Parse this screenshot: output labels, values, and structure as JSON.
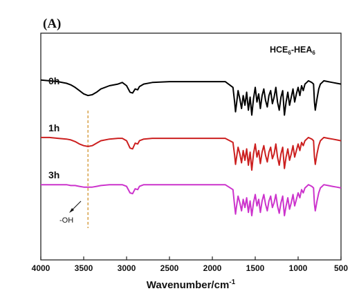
{
  "panel_label": "(A)",
  "sample_label": {
    "base": "HCE",
    "sub1": "6",
    "mid": "-HEA",
    "sub2": "6"
  },
  "annotation_oh": "-OH",
  "chart_data": {
    "type": "line",
    "title": "",
    "xlabel_main": "Wavenumber/cm",
    "xlabel_sup": "-1",
    "ylabel": "",
    "xlim": [
      4000,
      500
    ],
    "x_reversed": true,
    "x_ticks": [
      4000,
      3500,
      3000,
      2500,
      2000,
      1500,
      1000,
      500
    ],
    "y_ticks_shown": false,
    "grid": false,
    "legend": "none",
    "y_units": "relative transmittance (offset)",
    "reference_line": {
      "x": 3450,
      "style": "dashed",
      "color": "#d49a3a"
    },
    "series": [
      {
        "name": "0h",
        "color": "#000000",
        "x": [
          4000,
          3900,
          3800,
          3700,
          3650,
          3600,
          3550,
          3500,
          3450,
          3400,
          3350,
          3300,
          3200,
          3100,
          3050,
          3000,
          2960,
          2930,
          2900,
          2870,
          2850,
          2800,
          2700,
          2500,
          2300,
          2000,
          1850,
          1760,
          1740,
          1730,
          1720,
          1700,
          1680,
          1660,
          1640,
          1620,
          1600,
          1580,
          1560,
          1540,
          1520,
          1500,
          1480,
          1460,
          1440,
          1420,
          1400,
          1380,
          1360,
          1340,
          1320,
          1300,
          1280,
          1260,
          1240,
          1220,
          1200,
          1180,
          1160,
          1140,
          1120,
          1100,
          1080,
          1060,
          1040,
          1020,
          1000,
          980,
          960,
          940,
          920,
          900,
          880,
          860,
          840,
          820,
          810,
          800,
          780,
          760,
          740,
          720,
          700,
          650,
          600,
          550,
          500
        ],
        "y": [
          57,
          56,
          55,
          53,
          51,
          48,
          44,
          40,
          38,
          39,
          42,
          46,
          50,
          52,
          54,
          50,
          42,
          41,
          46,
          45,
          49,
          52,
          54,
          55,
          55,
          55,
          55,
          48,
          30,
          18,
          26,
          44,
          34,
          22,
          38,
          26,
          42,
          20,
          36,
          14,
          34,
          48,
          30,
          40,
          22,
          38,
          46,
          32,
          24,
          38,
          44,
          28,
          36,
          48,
          30,
          20,
          36,
          44,
          14,
          30,
          42,
          26,
          36,
          46,
          30,
          40,
          48,
          38,
          50,
          44,
          52,
          54,
          56,
          55,
          54,
          52,
          30,
          20,
          34,
          46,
          52,
          54,
          56,
          55,
          54,
          53,
          52
        ]
      },
      {
        "name": "1h",
        "color": "#cc1f1f",
        "x": [
          4000,
          3900,
          3800,
          3700,
          3650,
          3600,
          3550,
          3500,
          3450,
          3400,
          3350,
          3300,
          3200,
          3100,
          3050,
          3000,
          2960,
          2930,
          2900,
          2870,
          2850,
          2800,
          2700,
          2500,
          2300,
          2000,
          1850,
          1760,
          1740,
          1730,
          1720,
          1700,
          1680,
          1660,
          1640,
          1620,
          1600,
          1580,
          1560,
          1540,
          1520,
          1500,
          1480,
          1460,
          1440,
          1420,
          1400,
          1380,
          1360,
          1340,
          1320,
          1300,
          1280,
          1260,
          1240,
          1220,
          1200,
          1180,
          1160,
          1140,
          1120,
          1100,
          1080,
          1060,
          1040,
          1020,
          1000,
          980,
          960,
          940,
          920,
          900,
          880,
          860,
          840,
          820,
          810,
          800,
          780,
          760,
          740,
          720,
          700,
          650,
          600,
          550,
          500
        ],
        "y": [
          34,
          34,
          33,
          32,
          31,
          29,
          26,
          24,
          23,
          24,
          27,
          30,
          32,
          33,
          33,
          30,
          21,
          20,
          27,
          26,
          30,
          32,
          33,
          33,
          33,
          33,
          33,
          28,
          12,
          1,
          8,
          22,
          14,
          3,
          18,
          6,
          20,
          0,
          16,
          -6,
          14,
          26,
          10,
          18,
          2,
          16,
          24,
          12,
          4,
          16,
          22,
          8,
          14,
          26,
          10,
          0,
          14,
          22,
          -4,
          10,
          20,
          6,
          14,
          24,
          10,
          18,
          26,
          18,
          28,
          24,
          30,
          32,
          34,
          33,
          32,
          30,
          10,
          1,
          14,
          24,
          30,
          32,
          34,
          33,
          32,
          31,
          30
        ]
      },
      {
        "name": "3h",
        "color": "#cc33cc",
        "x": [
          4000,
          3900,
          3800,
          3700,
          3650,
          3600,
          3550,
          3500,
          3450,
          3400,
          3350,
          3300,
          3200,
          3100,
          3050,
          3000,
          2960,
          2930,
          2900,
          2870,
          2850,
          2800,
          2700,
          2500,
          2300,
          2000,
          1850,
          1760,
          1740,
          1730,
          1720,
          1700,
          1680,
          1660,
          1640,
          1620,
          1600,
          1580,
          1560,
          1540,
          1520,
          1500,
          1480,
          1460,
          1440,
          1420,
          1400,
          1380,
          1360,
          1340,
          1320,
          1300,
          1280,
          1260,
          1240,
          1220,
          1200,
          1180,
          1160,
          1140,
          1120,
          1100,
          1080,
          1060,
          1040,
          1020,
          1000,
          980,
          960,
          940,
          920,
          900,
          880,
          860,
          840,
          820,
          810,
          800,
          780,
          760,
          740,
          720,
          700,
          650,
          600,
          550,
          500
        ],
        "y": [
          10,
          10,
          10,
          10,
          9,
          9,
          8,
          7,
          7,
          7,
          8,
          9,
          10,
          10,
          10,
          8,
          0,
          -1,
          5,
          4,
          8,
          10,
          10,
          10,
          10,
          10,
          10,
          4,
          -16,
          -26,
          -18,
          -4,
          -12,
          -22,
          -8,
          -18,
          -6,
          -24,
          -10,
          -28,
          -12,
          -2,
          -16,
          -8,
          -24,
          -10,
          -2,
          -14,
          -22,
          -10,
          -4,
          -18,
          -12,
          -2,
          -16,
          -25,
          -12,
          -4,
          -28,
          -16,
          -6,
          -20,
          -12,
          -2,
          -16,
          -8,
          0,
          -6,
          4,
          0,
          6,
          8,
          10,
          9,
          8,
          6,
          -14,
          -22,
          -10,
          0,
          6,
          8,
          10,
          9,
          8,
          7,
          6
        ]
      }
    ]
  }
}
